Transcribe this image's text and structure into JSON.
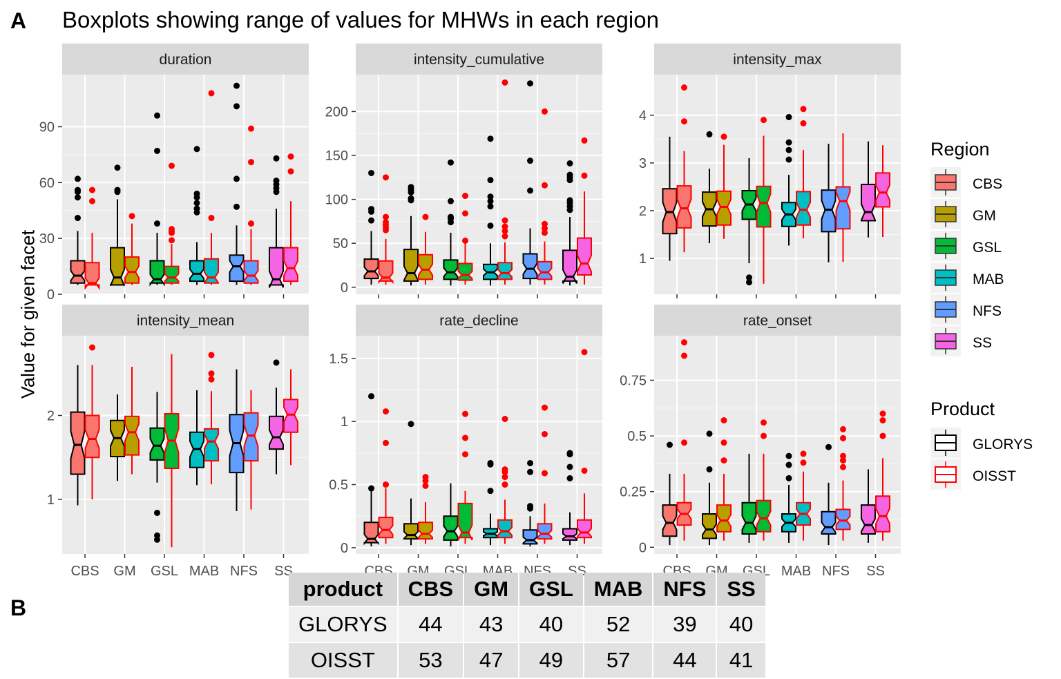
{
  "labels": {
    "a": "A",
    "b": "B"
  },
  "title": "Boxplots showing range of values for MHWs in each region",
  "ylabel": "Value for given facet",
  "chart_data": {
    "type": "boxplot",
    "title": "Boxplots showing range of values for MHWs in each region",
    "ylabel": "Value for given facet",
    "xlabel": "",
    "categories": [
      "CBS",
      "GM",
      "GSL",
      "MAB",
      "NFS",
      "SS"
    ],
    "region_colors": [
      "#F8766D",
      "#B79F00",
      "#00BA38",
      "#00BFC4",
      "#619CFF",
      "#F564E3"
    ],
    "products": [
      {
        "name": "GLORYS",
        "color": "#000000"
      },
      {
        "name": "OISST",
        "color": "#FF0000"
      }
    ],
    "legend": {
      "region_title": "Region",
      "product_title": "Product",
      "position": "right"
    },
    "facets": [
      {
        "name": "duration",
        "ylim": [
          0,
          118
        ],
        "yticks": [
          0,
          30,
          60,
          90
        ],
        "show_x_labels": false,
        "glorys": [
          {
            "min": 5,
            "q1": 6,
            "med": 10,
            "q3": 18,
            "max": 34,
            "out": [
              41,
              52,
              55,
              56,
              62
            ]
          },
          {
            "min": 5,
            "q1": 5,
            "med": 9,
            "q3": 25,
            "max": 51,
            "out": [
              55,
              56,
              68
            ]
          },
          {
            "min": 5,
            "q1": 6,
            "med": 8,
            "q3": 18,
            "max": 33,
            "out": [
              38,
              77,
              96
            ]
          },
          {
            "min": 5,
            "q1": 7,
            "med": 11,
            "q3": 18,
            "max": 28,
            "out": [
              44,
              46,
              49,
              52,
              54,
              78
            ]
          },
          {
            "min": 5,
            "q1": 7,
            "med": 15,
            "q3": 21,
            "max": 37,
            "out": [
              47,
              62,
              101,
              112
            ]
          },
          {
            "min": 5,
            "q1": 5,
            "med": 8,
            "q3": 25,
            "max": 46,
            "out": [
              55,
              57,
              59,
              61,
              73
            ]
          }
        ],
        "oisst": [
          {
            "min": 5,
            "q1": 5,
            "med": 6,
            "q3": 17,
            "max": 33,
            "out": [
              50,
              56
            ]
          },
          {
            "min": 5,
            "q1": 6,
            "med": 12,
            "q3": 20,
            "max": 38,
            "out": [
              42
            ]
          },
          {
            "min": 5,
            "q1": 6,
            "med": 9,
            "q3": 15,
            "max": 27,
            "out": [
              29,
              33,
              34,
              35,
              69
            ]
          },
          {
            "min": 5,
            "q1": 6,
            "med": 9,
            "q3": 19,
            "max": 33,
            "out": [
              41,
              108
            ]
          },
          {
            "min": 5,
            "q1": 6,
            "med": 10,
            "q3": 18,
            "max": 35,
            "out": [
              38,
              71,
              89
            ]
          },
          {
            "min": 5,
            "q1": 7,
            "med": 14,
            "q3": 25,
            "max": 50,
            "out": [
              66,
              74
            ]
          }
        ]
      },
      {
        "name": "intensity_cumulative",
        "ylim": [
          -8,
          242
        ],
        "yticks": [
          0,
          50,
          100,
          150,
          200
        ],
        "show_x_labels": false,
        "glorys": [
          {
            "min": 3,
            "q1": 10,
            "med": 18,
            "q3": 32,
            "max": 64,
            "out": [
              76,
              86,
              89,
              130
            ]
          },
          {
            "min": 2,
            "q1": 7,
            "med": 16,
            "q3": 43,
            "max": 81,
            "out": [
              99,
              101,
              108,
              111,
              114
            ]
          },
          {
            "min": 2,
            "q1": 9,
            "med": 17,
            "q3": 31,
            "max": 62,
            "out": [
              74,
              78,
              80,
              98,
              142
            ]
          },
          {
            "min": 2,
            "q1": 9,
            "med": 17,
            "q3": 26,
            "max": 50,
            "out": [
              70,
              92,
              98,
              103,
              122,
              169
            ]
          },
          {
            "min": 3,
            "q1": 10,
            "med": 21,
            "q3": 38,
            "max": 67,
            "out": [
              110,
              144,
              232
            ]
          },
          {
            "min": 2,
            "q1": 7,
            "med": 12,
            "q3": 42,
            "max": 80,
            "out": [
              88,
              92,
              96,
              99,
              122,
              125,
              128,
              141
            ]
          }
        ],
        "oisst": [
          {
            "min": 3,
            "q1": 7,
            "med": 11,
            "q3": 30,
            "max": 55,
            "out": [
              65,
              68,
              71,
              74,
              80,
              125
            ]
          },
          {
            "min": 3,
            "q1": 9,
            "med": 20,
            "q3": 37,
            "max": 63,
            "out": [
              80
            ]
          },
          {
            "min": 3,
            "q1": 8,
            "med": 14,
            "q3": 27,
            "max": 51,
            "out": [
              53,
              84,
              104
            ]
          },
          {
            "min": 3,
            "q1": 9,
            "med": 16,
            "q3": 28,
            "max": 51,
            "out": [
              58,
              64,
              69,
              76,
              233
            ]
          },
          {
            "min": 3,
            "q1": 9,
            "med": 17,
            "q3": 29,
            "max": 52,
            "out": [
              62,
              67,
              72,
              116,
              200
            ]
          },
          {
            "min": 3,
            "q1": 14,
            "med": 27,
            "q3": 56,
            "max": 109,
            "out": [
              127,
              167
            ]
          }
        ]
      },
      {
        "name": "intensity_max",
        "ylim": [
          0.25,
          4.85
        ],
        "yticks": [
          1,
          2,
          3,
          4
        ],
        "show_x_labels": false,
        "glorys": [
          {
            "min": 0.95,
            "q1": 1.52,
            "med": 1.97,
            "q3": 2.46,
            "max": 3.55,
            "out": []
          },
          {
            "min": 1.32,
            "q1": 1.68,
            "med": 2.03,
            "q3": 2.39,
            "max": 2.88,
            "out": [
              3.6
            ]
          },
          {
            "min": 0.9,
            "q1": 1.82,
            "med": 2.13,
            "q3": 2.42,
            "max": 3.1,
            "out": [
              0.5,
              0.6
            ]
          },
          {
            "min": 1.27,
            "q1": 1.67,
            "med": 1.92,
            "q3": 2.17,
            "max": 2.75,
            "out": [
              3.07,
              3.27,
              3.43,
              3.96
            ]
          },
          {
            "min": 0.92,
            "q1": 1.56,
            "med": 2.02,
            "q3": 2.43,
            "max": 3.4,
            "out": []
          },
          {
            "min": 1.44,
            "q1": 1.79,
            "med": 1.97,
            "q3": 2.55,
            "max": 3.45,
            "out": []
          }
        ],
        "oisst": [
          {
            "min": 1.13,
            "q1": 1.64,
            "med": 2.05,
            "q3": 2.52,
            "max": 3.25,
            "out": [
              3.87,
              4.58
            ]
          },
          {
            "min": 1.41,
            "q1": 1.7,
            "med": 2.08,
            "q3": 2.41,
            "max": 3.38,
            "out": [
              3.55
            ]
          },
          {
            "min": 0.47,
            "q1": 1.66,
            "med": 2.16,
            "q3": 2.51,
            "max": 3.57,
            "out": [
              3.9
            ]
          },
          {
            "min": 1.42,
            "q1": 1.7,
            "med": 2.02,
            "q3": 2.4,
            "max": 3.27,
            "out": [
              3.83,
              4.13
            ]
          },
          {
            "min": 0.93,
            "q1": 1.62,
            "med": 2.2,
            "q3": 2.5,
            "max": 3.62,
            "out": []
          },
          {
            "min": 1.45,
            "q1": 2.08,
            "med": 2.38,
            "q3": 2.79,
            "max": 3.37,
            "out": []
          }
        ]
      },
      {
        "name": "intensity_mean",
        "ylim": [
          0.35,
          2.95
        ],
        "yticks": [
          1,
          2
        ],
        "show_x_labels": true,
        "glorys": [
          {
            "min": 0.93,
            "q1": 1.3,
            "med": 1.65,
            "q3": 2.04,
            "max": 2.6,
            "out": []
          },
          {
            "min": 1.22,
            "q1": 1.51,
            "med": 1.73,
            "q3": 1.94,
            "max": 2.25,
            "out": []
          },
          {
            "min": 1.2,
            "q1": 1.47,
            "med": 1.64,
            "q3": 1.85,
            "max": 2.28,
            "out": [
              0.52,
              0.57,
              0.84
            ]
          },
          {
            "min": 1.17,
            "q1": 1.38,
            "med": 1.6,
            "q3": 1.8,
            "max": 2.3,
            "out": []
          },
          {
            "min": 0.86,
            "q1": 1.32,
            "med": 1.67,
            "q3": 2.01,
            "max": 2.55,
            "out": []
          },
          {
            "min": 1.3,
            "q1": 1.6,
            "med": 1.74,
            "q3": 1.99,
            "max": 2.33,
            "out": [
              2.63
            ]
          }
        ],
        "oisst": [
          {
            "min": 1.0,
            "q1": 1.5,
            "med": 1.72,
            "q3": 2.0,
            "max": 2.6,
            "out": [
              2.81
            ]
          },
          {
            "min": 1.3,
            "q1": 1.53,
            "med": 1.8,
            "q3": 1.99,
            "max": 2.58,
            "out": []
          },
          {
            "min": 0.43,
            "q1": 1.37,
            "med": 1.7,
            "q3": 2.02,
            "max": 2.73,
            "out": []
          },
          {
            "min": 1.18,
            "q1": 1.46,
            "med": 1.69,
            "q3": 1.84,
            "max": 2.29,
            "out": [
              2.43,
              2.5,
              2.72
            ]
          },
          {
            "min": 0.88,
            "q1": 1.46,
            "med": 1.76,
            "q3": 2.03,
            "max": 2.3,
            "out": []
          },
          {
            "min": 1.41,
            "q1": 1.8,
            "med": 2.01,
            "q3": 2.19,
            "max": 2.55,
            "out": []
          }
        ]
      },
      {
        "name": "rate_decline",
        "ylim": [
          -0.05,
          1.68
        ],
        "yticks": [
          0.0,
          0.5,
          1.0,
          1.5
        ],
        "show_x_labels": false,
        "glorys": [
          {
            "min": 0.01,
            "q1": 0.04,
            "med": 0.07,
            "q3": 0.2,
            "max": 0.45,
            "out": [
              0.47,
              1.2
            ]
          },
          {
            "min": 0.02,
            "q1": 0.07,
            "med": 0.1,
            "q3": 0.19,
            "max": 0.39,
            "out": [
              0.98
            ]
          },
          {
            "min": 0.01,
            "q1": 0.06,
            "med": 0.13,
            "q3": 0.25,
            "max": 0.51,
            "out": []
          },
          {
            "min": 0.02,
            "q1": 0.08,
            "med": 0.11,
            "q3": 0.15,
            "max": 0.27,
            "out": [
              0.45,
              0.66,
              0.67
            ]
          },
          {
            "min": 0.01,
            "q1": 0.03,
            "med": 0.06,
            "q3": 0.14,
            "max": 0.25,
            "out": [
              0.31,
              0.33,
              0.6,
              0.67
            ]
          },
          {
            "min": 0.02,
            "q1": 0.06,
            "med": 0.09,
            "q3": 0.15,
            "max": 0.28,
            "out": [
              0.55,
              0.64,
              0.74,
              0.75
            ]
          }
        ],
        "oisst": [
          {
            "min": 0.03,
            "q1": 0.08,
            "med": 0.14,
            "q3": 0.24,
            "max": 0.47,
            "out": [
              0.5,
              0.83,
              1.08
            ]
          },
          {
            "min": 0.03,
            "q1": 0.07,
            "med": 0.11,
            "q3": 0.2,
            "max": 0.36,
            "out": [
              0.49,
              0.53,
              0.56
            ]
          },
          {
            "min": 0.03,
            "q1": 0.08,
            "med": 0.12,
            "q3": 0.35,
            "max": 0.45,
            "out": [
              0.74,
              0.87,
              1.06
            ]
          },
          {
            "min": 0.03,
            "q1": 0.08,
            "med": 0.13,
            "q3": 0.22,
            "max": 0.38,
            "out": [
              0.5,
              0.56,
              0.6,
              0.62,
              1.02
            ]
          },
          {
            "min": 0.03,
            "q1": 0.07,
            "med": 0.11,
            "q3": 0.19,
            "max": 0.35,
            "out": [
              0.59,
              0.9,
              1.11
            ]
          },
          {
            "min": 0.03,
            "q1": 0.08,
            "med": 0.12,
            "q3": 0.22,
            "max": 0.43,
            "out": [
              0.61,
              1.55
            ]
          }
        ]
      },
      {
        "name": "rate_onset",
        "ylim": [
          -0.03,
          0.95
        ],
        "yticks": [
          0.0,
          0.25,
          0.5,
          0.75
        ],
        "show_x_labels": true,
        "glorys": [
          {
            "min": 0.01,
            "q1": 0.05,
            "med": 0.11,
            "q3": 0.19,
            "max": 0.33,
            "out": [
              0.46
            ]
          },
          {
            "min": 0.01,
            "q1": 0.04,
            "med": 0.08,
            "q3": 0.15,
            "max": 0.29,
            "out": [
              0.35,
              0.51
            ]
          },
          {
            "min": 0.02,
            "q1": 0.06,
            "med": 0.11,
            "q3": 0.2,
            "max": 0.42,
            "out": []
          },
          {
            "min": 0.02,
            "q1": 0.07,
            "med": 0.11,
            "q3": 0.15,
            "max": 0.28,
            "out": [
              0.31,
              0.37,
              0.41
            ]
          },
          {
            "min": 0.01,
            "q1": 0.06,
            "med": 0.09,
            "q3": 0.16,
            "max": 0.29,
            "out": [
              0.45
            ]
          },
          {
            "min": 0.02,
            "q1": 0.06,
            "med": 0.1,
            "q3": 0.19,
            "max": 0.35,
            "out": []
          }
        ],
        "oisst": [
          {
            "min": 0.03,
            "q1": 0.1,
            "med": 0.15,
            "q3": 0.2,
            "max": 0.33,
            "out": [
              0.47,
              0.86,
              0.92
            ]
          },
          {
            "min": 0.03,
            "q1": 0.07,
            "med": 0.12,
            "q3": 0.19,
            "max": 0.33,
            "out": [
              0.39,
              0.47,
              0.57
            ]
          },
          {
            "min": 0.03,
            "q1": 0.07,
            "med": 0.13,
            "q3": 0.21,
            "max": 0.42,
            "out": [
              0.5,
              0.56
            ]
          },
          {
            "min": 0.03,
            "q1": 0.1,
            "med": 0.15,
            "q3": 0.2,
            "max": 0.34,
            "out": [
              0.38,
              0.42
            ]
          },
          {
            "min": 0.03,
            "q1": 0.08,
            "med": 0.12,
            "q3": 0.17,
            "max": 0.3,
            "out": [
              0.36,
              0.39,
              0.41,
              0.49,
              0.53
            ]
          },
          {
            "min": 0.03,
            "q1": 0.07,
            "med": 0.14,
            "q3": 0.23,
            "max": 0.4,
            "out": [
              0.5,
              0.57,
              0.6
            ]
          }
        ]
      }
    ]
  },
  "table": {
    "headers": [
      "product",
      "CBS",
      "GM",
      "GSL",
      "MAB",
      "NFS",
      "SS"
    ],
    "rows": [
      [
        "GLORYS",
        "44",
        "43",
        "40",
        "52",
        "39",
        "40"
      ],
      [
        "OISST",
        "53",
        "47",
        "49",
        "57",
        "44",
        "41"
      ]
    ]
  }
}
